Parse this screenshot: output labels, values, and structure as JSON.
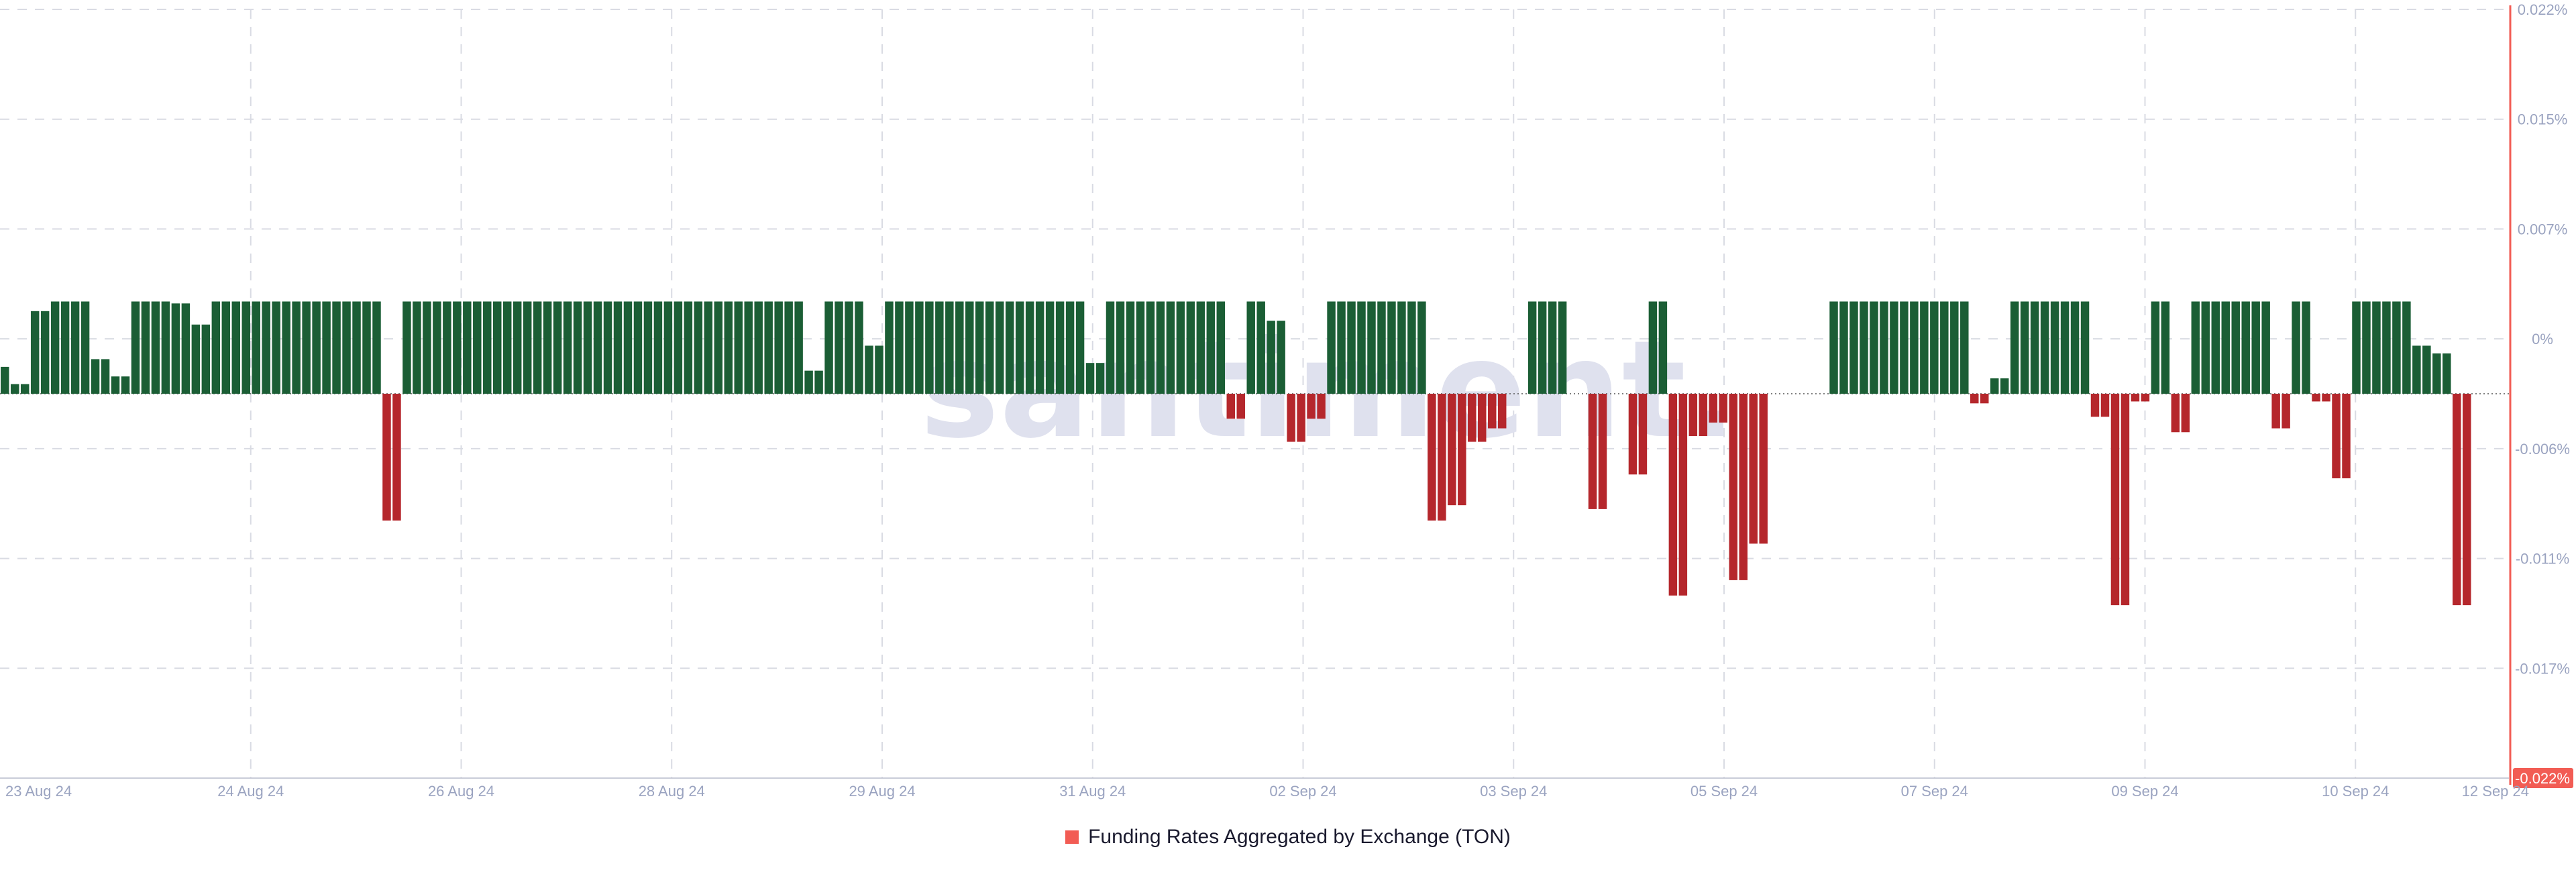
{
  "watermark": "santiment.",
  "colors": {
    "positive": "#1b5e35",
    "negative": "#b5272c",
    "accent": "#f25c54",
    "grid": "#d9dbe3",
    "tick_text": "#9aa3c0",
    "watermark": "#dfe1ee"
  },
  "legend": {
    "label": "Funding Rates Aggregated by Exchange (TON)",
    "marker_color": "#f25c54"
  },
  "chart_data": {
    "type": "bar",
    "series": [
      {
        "name": "Funding Rates Aggregated by Exchange (TON)",
        "values": [
          0.0014,
          0.0005,
          0.0005,
          0.0043,
          0.0043,
          0.0048,
          0.0048,
          0.0048,
          0.0048,
          0.0018,
          0.0018,
          0.0009,
          0.0009,
          0.0048,
          0.0048,
          0.0048,
          0.0048,
          0.0047,
          0.0047,
          0.0036,
          0.0036,
          0.0048,
          0.0048,
          0.0048,
          0.0048,
          0.0048,
          0.0048,
          0.0048,
          0.0048,
          0.0048,
          0.0048,
          0.0048,
          0.0048,
          0.0048,
          0.0048,
          0.0048,
          0.0048,
          0.0048,
          -0.0066,
          -0.0066,
          0.0048,
          0.0048,
          0.0048,
          0.0048,
          0.0048,
          0.0048,
          0.0048,
          0.0048,
          0.0048,
          0.0048,
          0.0048,
          0.0048,
          0.0048,
          0.0048,
          0.0048,
          0.0048,
          0.0048,
          0.0048,
          0.0048,
          0.0048,
          0.0048,
          0.0048,
          0.0048,
          0.0048,
          0.0048,
          0.0048,
          0.0048,
          0.0048,
          0.0048,
          0.0048,
          0.0048,
          0.0048,
          0.0048,
          0.0048,
          0.0048,
          0.0048,
          0.0048,
          0.0048,
          0.0048,
          0.0048,
          0.0012,
          0.0012,
          0.0048,
          0.0048,
          0.0048,
          0.0048,
          0.0025,
          0.0025,
          0.0048,
          0.0048,
          0.0048,
          0.0048,
          0.0048,
          0.0048,
          0.0048,
          0.0048,
          0.0048,
          0.0048,
          0.0048,
          0.0048,
          0.0048,
          0.0048,
          0.0048,
          0.0048,
          0.0048,
          0.0048,
          0.0048,
          0.0048,
          0.0016,
          0.0016,
          0.0048,
          0.0048,
          0.0048,
          0.0048,
          0.0048,
          0.0048,
          0.0048,
          0.0048,
          0.0048,
          0.0048,
          0.0048,
          0.0048,
          -0.0013,
          -0.0013,
          0.0048,
          0.0048,
          0.0038,
          0.0038,
          -0.0025,
          -0.0025,
          -0.0013,
          -0.0013,
          0.0048,
          0.0048,
          0.0048,
          0.0048,
          0.0048,
          0.0048,
          0.0048,
          0.0048,
          0.0048,
          0.0048,
          -0.0066,
          -0.0066,
          -0.0058,
          -0.0058,
          -0.0025,
          -0.0025,
          -0.0018,
          -0.0018,
          0.0,
          0.0,
          0.0048,
          0.0048,
          0.0048,
          0.0048,
          0.0,
          0.0,
          -0.006,
          -0.006,
          0.0,
          0.0,
          -0.0042,
          -0.0042,
          0.0048,
          0.0048,
          -0.0105,
          -0.0105,
          -0.0022,
          -0.0022,
          -0.0015,
          -0.0015,
          -0.0097,
          -0.0097,
          -0.0078,
          -0.0078,
          0.0,
          0.0,
          0.0,
          0.0,
          0.0,
          0.0,
          0.0048,
          0.0048,
          0.0048,
          0.0048,
          0.0048,
          0.0048,
          0.0048,
          0.0048,
          0.0048,
          0.0048,
          0.0048,
          0.0048,
          0.0048,
          0.0048,
          -0.0005,
          -0.0005,
          0.0008,
          0.0008,
          0.0048,
          0.0048,
          0.0048,
          0.0048,
          0.0048,
          0.0048,
          0.0048,
          0.0048,
          -0.0012,
          -0.0012,
          -0.011,
          -0.011,
          -0.0004,
          -0.0004,
          0.0048,
          0.0048,
          -0.002,
          -0.002,
          0.0048,
          0.0048,
          0.0048,
          0.0048,
          0.0048,
          0.0048,
          0.0048,
          0.0048,
          -0.0018,
          -0.0018,
          0.0048,
          0.0048,
          -0.0004,
          -0.0004,
          -0.0044,
          -0.0044,
          0.0048,
          0.0048,
          0.0048,
          0.0048,
          0.0048,
          0.0048,
          0.0025,
          0.0025,
          0.0021,
          0.0021,
          -0.011,
          -0.011
        ]
      }
    ],
    "x_ticks": [
      "23 Aug 24",
      "24 Aug 24",
      "26 Aug 24",
      "28 Aug 24",
      "29 Aug 24",
      "31 Aug 24",
      "02 Sep 24",
      "03 Sep 24",
      "05 Sep 24",
      "07 Sep 24",
      "09 Sep 24",
      "10 Sep 24",
      "12 Sep 24"
    ],
    "y_ticks": [
      "0.022%",
      "0.015%",
      "0.007%",
      "0%",
      "-0.006%",
      "-0.011%",
      "-0.017%",
      "-0.022%"
    ],
    "ylim": [
      -0.02,
      0.02
    ],
    "grid": true,
    "legend_position": "bottom-center"
  }
}
